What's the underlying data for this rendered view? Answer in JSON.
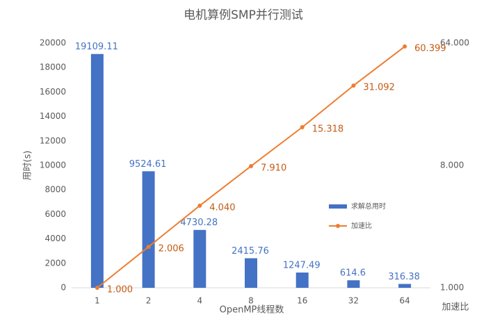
{
  "chart_data": {
    "type": "bar",
    "title": "电机算例SMP并行测试",
    "x_label": "OpenMP线程数",
    "y_label": "用时(s)",
    "y2_label": "加速比",
    "categories": [
      "1",
      "2",
      "4",
      "8",
      "16",
      "32",
      "64"
    ],
    "series": [
      {
        "name": "求解总用时",
        "type": "bar",
        "color": "#4472c4",
        "values": [
          19109.11,
          9524.61,
          4730.28,
          2415.76,
          1247.49,
          614.6,
          316.38
        ]
      },
      {
        "name": "加速比",
        "type": "line",
        "axis": "y2",
        "color": "#ed7d31",
        "values": [
          1,
          2.006,
          4.04,
          7.91,
          15.318,
          31.092,
          60.399
        ],
        "value_labels": [
          "1.000",
          "2.006",
          "4.040",
          "7.910",
          "15.318",
          "31.092",
          "60.399"
        ]
      }
    ],
    "ylim": [
      0,
      20000
    ],
    "yticks": [
      0,
      2000,
      4000,
      6000,
      8000,
      10000,
      12000,
      14000,
      16000,
      18000,
      20000
    ],
    "y2lim": [
      1,
      64
    ],
    "y2_log": true,
    "y2ticks": [
      {
        "value": 1,
        "label": "1.000"
      },
      {
        "value": 8,
        "label": "8.000"
      },
      {
        "value": 64,
        "label": "64.000"
      }
    ],
    "grid": false,
    "legend": "right"
  }
}
